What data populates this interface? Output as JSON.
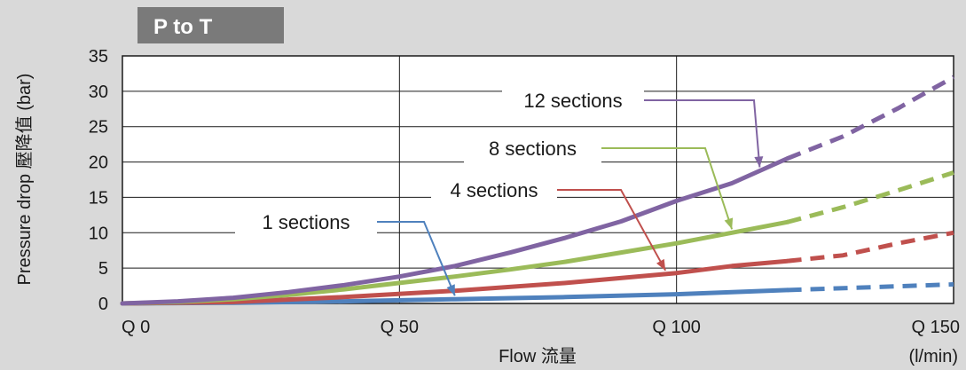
{
  "colors": {
    "background": "#d9d9d9",
    "banner": "#7a7a7a",
    "plot_bg": "#ffffff",
    "grid": "#1a1a1a"
  },
  "chart_data": {
    "type": "line",
    "title": "P to T",
    "xlabel": "Flow 流量",
    "ylabel": "Pressure drop 壓降值 (bar)",
    "x_unit_label": "(l/min)",
    "xlim": [
      0,
      150
    ],
    "ylim": [
      0,
      35
    ],
    "x_ticks": [
      0,
      50,
      100,
      150
    ],
    "x_tick_labels": [
      "Q 0",
      "Q 50",
      "Q 100",
      "Q 150"
    ],
    "y_ticks": [
      0,
      5,
      10,
      15,
      20,
      25,
      30,
      35
    ],
    "y_tick_labels": [
      "0",
      "5",
      "10",
      "15",
      "20",
      "25",
      "30",
      "35"
    ],
    "grid": "vertical and horizontal at ticks",
    "series": [
      {
        "name": "1 sections",
        "color": "#4f81bd",
        "solid_until_x": 120,
        "x": [
          0,
          20,
          40,
          60,
          80,
          100,
          120,
          135,
          150
        ],
        "y": [
          0,
          0.1,
          0.3,
          0.6,
          0.9,
          1.3,
          1.9,
          2.3,
          2.7
        ]
      },
      {
        "name": "4 sections",
        "color": "#c0504d",
        "solid_until_x": 120,
        "x": [
          0,
          20,
          40,
          60,
          80,
          100,
          110,
          120,
          130,
          140,
          150
        ],
        "y": [
          0,
          0.2,
          0.9,
          1.8,
          2.9,
          4.3,
          5.3,
          6.0,
          6.8,
          8.5,
          10.0
        ]
      },
      {
        "name": "8 sections",
        "color": "#9bbb59",
        "solid_until_x": 120,
        "x": [
          0,
          10,
          20,
          30,
          40,
          50,
          60,
          70,
          80,
          90,
          100,
          110,
          120,
          130,
          140,
          150
        ],
        "y": [
          0,
          0.2,
          0.6,
          1.2,
          2.0,
          2.9,
          3.8,
          4.8,
          5.9,
          7.2,
          8.5,
          10.0,
          11.5,
          13.6,
          16.0,
          18.5
        ]
      },
      {
        "name": "12 sections",
        "color": "#8064a2",
        "solid_until_x": 120,
        "x": [
          0,
          10,
          20,
          30,
          40,
          50,
          60,
          70,
          80,
          90,
          100,
          110,
          120,
          130,
          140,
          150
        ],
        "y": [
          0,
          0.3,
          0.8,
          1.6,
          2.6,
          3.8,
          5.3,
          7.2,
          9.3,
          11.6,
          14.5,
          17.0,
          20.5,
          23.6,
          27.6,
          32.0
        ]
      }
    ],
    "labels": [
      {
        "text": "12 sections",
        "series": 3,
        "pointer_to_x": 115
      },
      {
        "text": "8 sections",
        "series": 2,
        "pointer_to_x": 110
      },
      {
        "text": "4 sections",
        "series": 1,
        "pointer_to_x": 98
      },
      {
        "text": "1 sections",
        "series": 0,
        "pointer_to_x": 60
      }
    ]
  }
}
